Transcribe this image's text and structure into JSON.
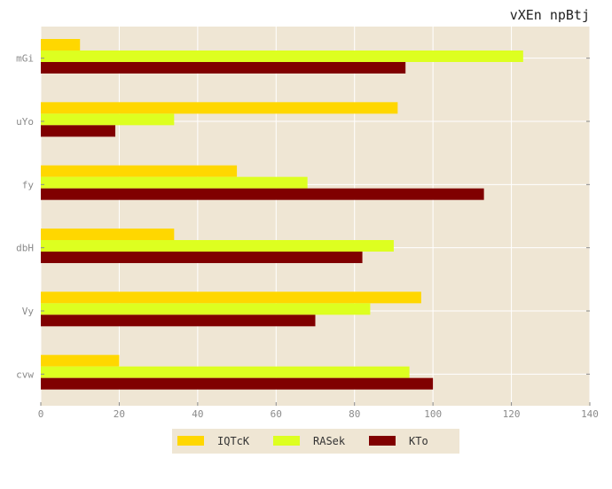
{
  "chart_data": {
    "type": "bar",
    "orientation": "horizontal",
    "title": "vXEn npBtj",
    "xlabel": "",
    "ylabel": "",
    "categories": [
      "cvw",
      "Vy",
      "dbH",
      "fy",
      "uYo",
      "mGi"
    ],
    "xlim": [
      0,
      140
    ],
    "xticks": [
      0,
      20,
      40,
      60,
      80,
      100,
      120,
      140
    ],
    "grid": true,
    "legend_position": "bottom-center",
    "series": [
      {
        "name": "IQTcK",
        "color": "#ffd700",
        "values": [
          20,
          97,
          34,
          50,
          91,
          10
        ]
      },
      {
        "name": "RASek",
        "color": "#ddff20",
        "values": [
          94,
          84,
          90,
          68,
          34,
          123
        ]
      },
      {
        "name": "KTo",
        "color": "#800000",
        "values": [
          100,
          70,
          82,
          113,
          19,
          93
        ]
      }
    ],
    "colors": {
      "plot_background": "#efe6d4",
      "grid": "#ffffff"
    }
  }
}
